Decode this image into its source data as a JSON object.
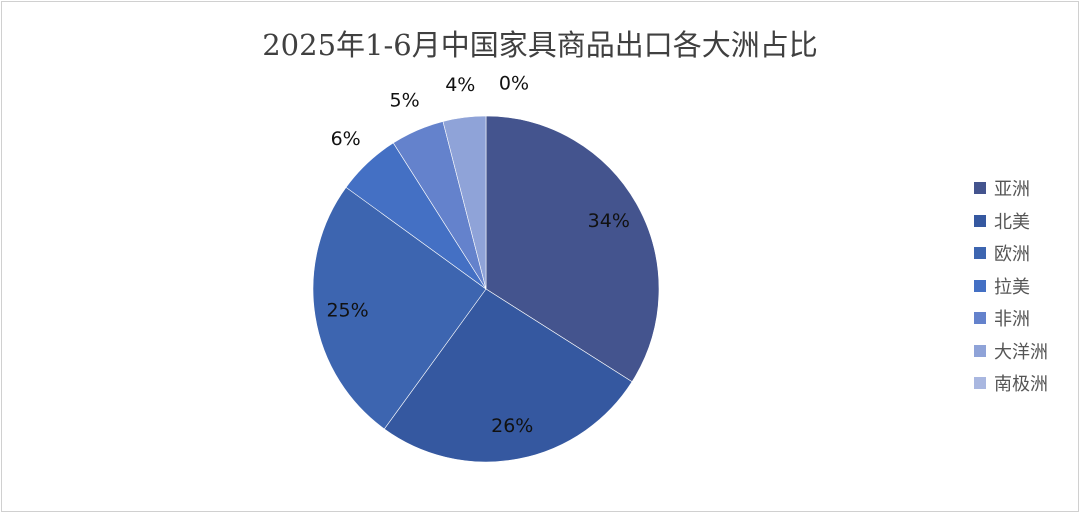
{
  "chart_data": {
    "type": "pie",
    "title": "2025年1-6月中国家具商品出口各大洲占比",
    "categories": [
      "亚洲",
      "北美",
      "欧洲",
      "拉美",
      "非洲",
      "大洋洲",
      "南极洲"
    ],
    "values": [
      34,
      26,
      25,
      6,
      5,
      4,
      0
    ],
    "labels": [
      "34%",
      "26%",
      "25%",
      "6%",
      "5%",
      "4%",
      "0%"
    ],
    "colors": [
      "#44548E",
      "#3558A0",
      "#3D65B0",
      "#4470C4",
      "#6482CC",
      "#8FA3D8",
      "#A9B7E0"
    ],
    "legend": "right",
    "start_angle": "top, clockwise"
  }
}
